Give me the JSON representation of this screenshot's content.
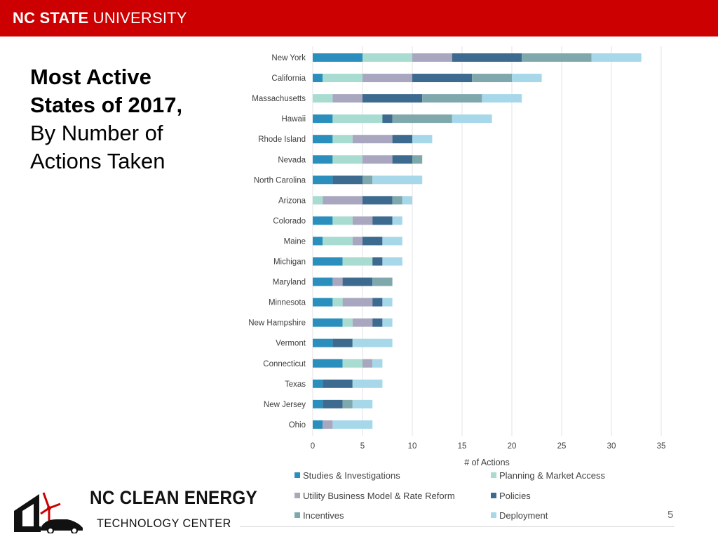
{
  "header": {
    "brand_bold": "NC STATE",
    "brand_light": " UNIVERSITY"
  },
  "title": {
    "line1": "Most Active",
    "line2": "States of 2017,",
    "line3": "By Number of",
    "line4": "Actions Taken"
  },
  "logo": {
    "line1": "NC CLEAN ENERGY",
    "line2": "TECHNOLOGY CENTER"
  },
  "page_number": "5",
  "colors": {
    "header_red": "#cc0000",
    "studies": "#2a8fbd",
    "planning": "#a8dcd1",
    "utility": "#a9a7bf",
    "policies": "#3d6a8f",
    "incentives": "#7fa8ad",
    "deployment": "#a6d8ea"
  },
  "chart_data": {
    "type": "bar",
    "orientation": "horizontal",
    "stacked": true,
    "categories": [
      "New York",
      "California",
      "Massachusetts",
      "Hawaii",
      "Rhode Island",
      "Nevada",
      "North Carolina",
      "Arizona",
      "Colorado",
      "Maine",
      "Michigan",
      "Maryland",
      "Minnesota",
      "New Hampshire",
      "Vermont",
      "Connecticut",
      "Texas",
      "New Jersey",
      "Ohio"
    ],
    "series": [
      {
        "name": "Studies & Investigations",
        "color": "#2a8fbd",
        "values": [
          5,
          1,
          0,
          2,
          2,
          2,
          2,
          0,
          2,
          1,
          3,
          2,
          2,
          3,
          2,
          3,
          1,
          1,
          1
        ]
      },
      {
        "name": "Planning & Market Access",
        "color": "#a8dcd1",
        "values": [
          5,
          4,
          2,
          5,
          2,
          3,
          0,
          1,
          2,
          3,
          3,
          0,
          1,
          1,
          0,
          2,
          0,
          0,
          0
        ]
      },
      {
        "name": "Utility Business Model & Rate Reform",
        "color": "#a9a7bf",
        "values": [
          4,
          5,
          3,
          0,
          4,
          3,
          0,
          4,
          2,
          1,
          0,
          1,
          3,
          2,
          0,
          1,
          0,
          0,
          1
        ]
      },
      {
        "name": "Policies",
        "color": "#3d6a8f",
        "values": [
          7,
          6,
          6,
          1,
          2,
          2,
          3,
          3,
          2,
          2,
          1,
          3,
          1,
          1,
          2,
          0,
          3,
          2,
          0
        ]
      },
      {
        "name": "Incentives",
        "color": "#7fa8ad",
        "values": [
          7,
          4,
          6,
          6,
          0,
          1,
          1,
          1,
          0,
          0,
          0,
          2,
          0,
          0,
          0,
          0,
          0,
          1,
          0
        ]
      },
      {
        "name": "Deployment",
        "color": "#a6d8ea",
        "values": [
          5,
          3,
          4,
          4,
          2,
          0,
          5,
          1,
          1,
          2,
          2,
          0,
          1,
          1,
          4,
          1,
          3,
          2,
          4
        ]
      }
    ],
    "xlabel": "# of Actions",
    "xlim": [
      0,
      35
    ],
    "xticks": [
      0,
      5,
      10,
      15,
      20,
      25,
      30,
      35
    ],
    "grid": "vertical",
    "legend": "bottom"
  }
}
